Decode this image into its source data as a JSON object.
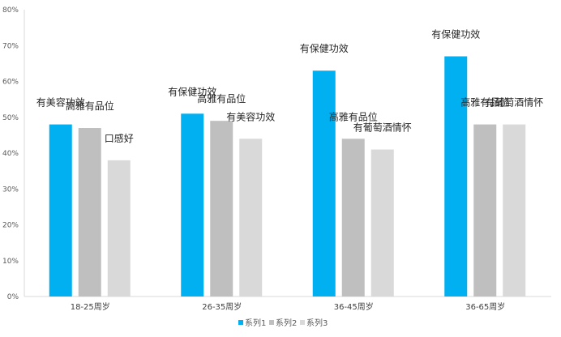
{
  "chart_data": {
    "type": "bar",
    "categories": [
      "18-25周岁",
      "26-35周岁",
      "36-45周岁",
      "36-65周岁"
    ],
    "series": [
      {
        "name": "系列1",
        "color": "#00B0F0",
        "values": [
          0.48,
          0.51,
          0.63,
          0.67
        ],
        "labels": [
          "有美容功效",
          "有保健功效",
          "有保健功效",
          "有保健功效"
        ]
      },
      {
        "name": "系列2",
        "color": "#BFBFBF",
        "values": [
          0.47,
          0.49,
          0.44,
          0.48
        ],
        "labels": [
          "高雅有品位",
          "高雅有品位",
          "高雅有品位",
          "高雅有品位"
        ]
      },
      {
        "name": "系列3",
        "color": "#D9D9D9",
        "values": [
          0.38,
          0.44,
          0.41,
          0.48
        ],
        "labels": [
          "口感好",
          "有美容功效",
          "有葡萄酒情怀",
          "有葡萄酒情怀"
        ]
      }
    ],
    "ylim": [
      0,
      0.8
    ],
    "yticks": [
      "0%",
      "10%",
      "20%",
      "30%",
      "40%",
      "50%",
      "60%",
      "70%",
      "80%"
    ],
    "grid": false,
    "legend_position": "bottom"
  }
}
